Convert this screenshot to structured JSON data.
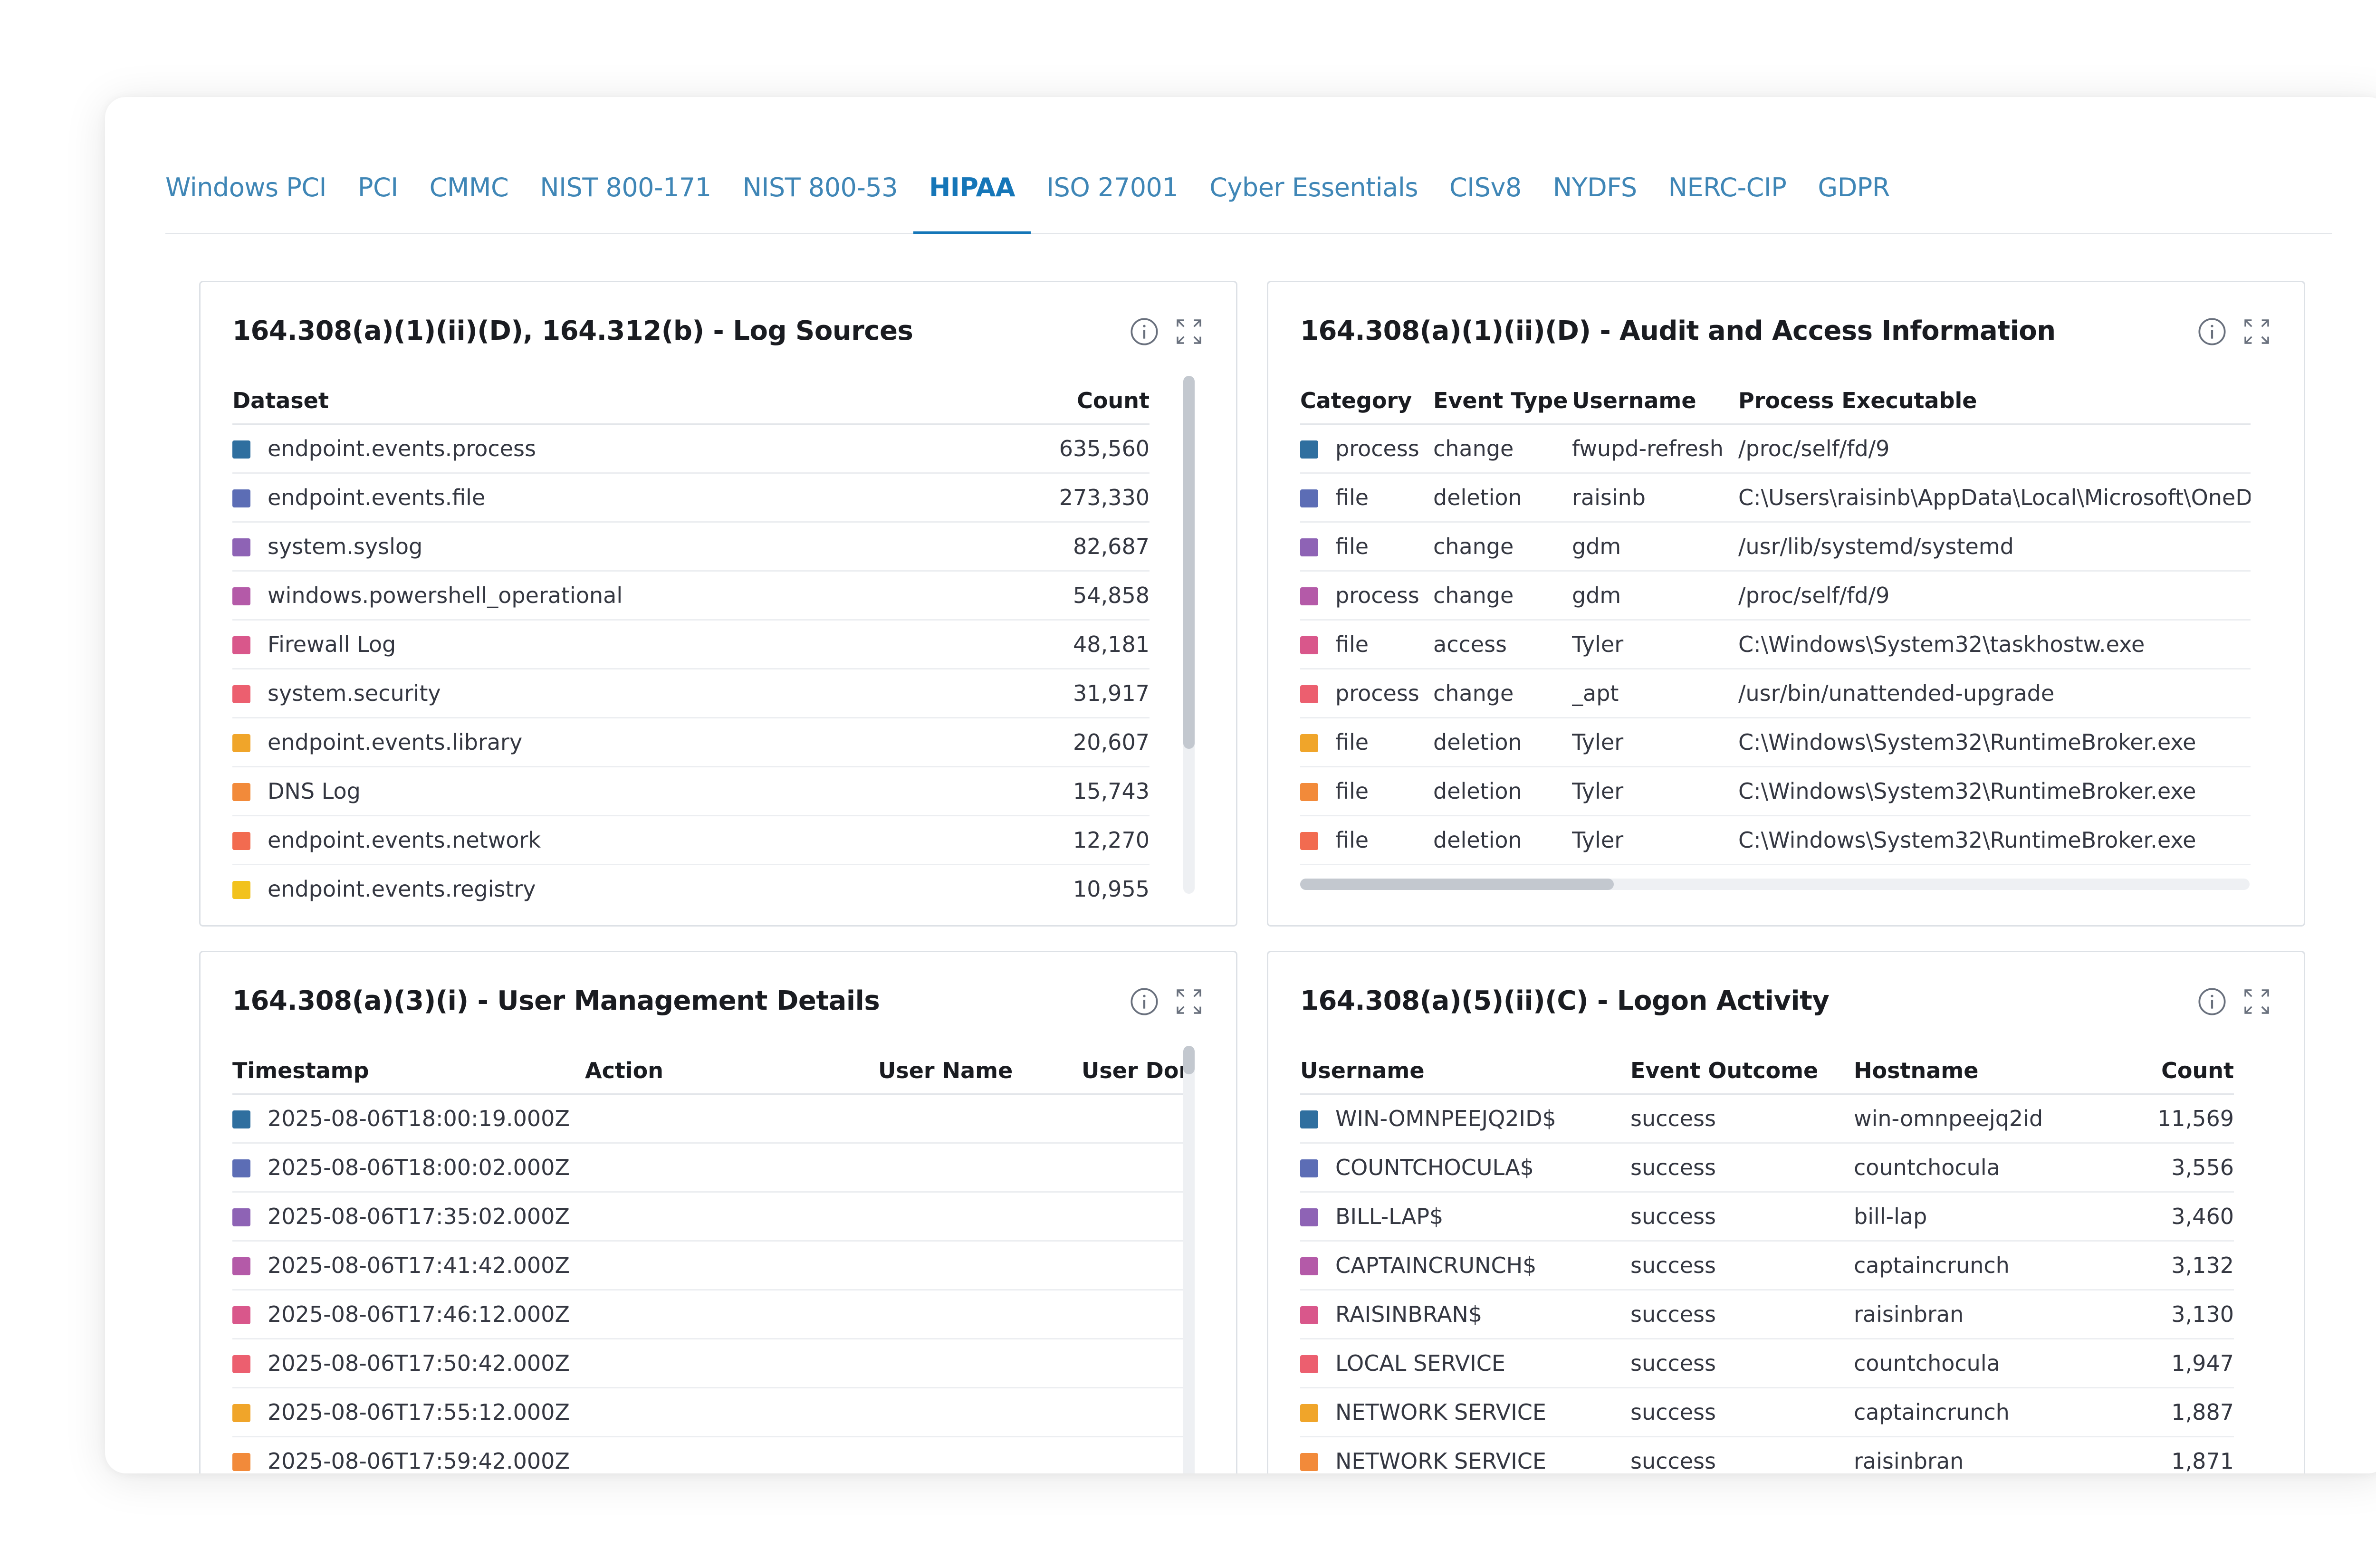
{
  "tabs": [
    {
      "label": "Windows PCI",
      "active": false
    },
    {
      "label": "PCI",
      "active": false
    },
    {
      "label": "CMMC",
      "active": false
    },
    {
      "label": "NIST 800-171",
      "active": false
    },
    {
      "label": "NIST 800-53",
      "active": false
    },
    {
      "label": "HIPAA",
      "active": true
    },
    {
      "label": "ISO 27001",
      "active": false
    },
    {
      "label": "Cyber Essentials",
      "active": false
    },
    {
      "label": "CISv8",
      "active": false
    },
    {
      "label": "NYDFS",
      "active": false
    },
    {
      "label": "NERC-CIP",
      "active": false
    },
    {
      "label": "GDPR",
      "active": false
    }
  ],
  "swatch_colors": [
    "#2f6f9f",
    "#5c6db5",
    "#8e63b5",
    "#b45aa8",
    "#d9578b",
    "#ec5f6f",
    "#f0a52a",
    "#f28a3a",
    "#f26b50",
    "#f2c21d"
  ],
  "panels": {
    "log_sources": {
      "title": "164.308(a)(1)(ii)(D), 164.312(b) - Log Sources",
      "headers": [
        "Dataset",
        "Count"
      ],
      "rows": [
        [
          "endpoint.events.process",
          "635,560"
        ],
        [
          "endpoint.events.file",
          "273,330"
        ],
        [
          "system.syslog",
          "82,687"
        ],
        [
          "windows.powershell_operational",
          "54,858"
        ],
        [
          "Firewall Log",
          "48,181"
        ],
        [
          "system.security",
          "31,917"
        ],
        [
          "endpoint.events.library",
          "20,607"
        ],
        [
          "DNS Log",
          "15,743"
        ],
        [
          "endpoint.events.network",
          "12,270"
        ],
        [
          "endpoint.events.registry",
          "10,955"
        ]
      ]
    },
    "audit_access": {
      "title": "164.308(a)(1)(ii)(D) - Audit and Access Information",
      "headers": [
        "Category",
        "Event Type",
        "Username",
        "Process Executable"
      ],
      "rows": [
        [
          "process",
          "change",
          "fwupd-refresh",
          "/proc/self/fd/9"
        ],
        [
          "file",
          "deletion",
          "raisinb",
          "C:\\Users\\raisinb\\AppData\\Local\\Microsoft\\OneDri"
        ],
        [
          "file",
          "change",
          "gdm",
          "/usr/lib/systemd/systemd"
        ],
        [
          "process",
          "change",
          "gdm",
          "/proc/self/fd/9"
        ],
        [
          "file",
          "access",
          "Tyler",
          "C:\\Windows\\System32\\taskhostw.exe"
        ],
        [
          "process",
          "change",
          "_apt",
          "/usr/bin/unattended-upgrade"
        ],
        [
          "file",
          "deletion",
          "Tyler",
          "C:\\Windows\\System32\\RuntimeBroker.exe"
        ],
        [
          "file",
          "deletion",
          "Tyler",
          "C:\\Windows\\System32\\RuntimeBroker.exe"
        ],
        [
          "file",
          "deletion",
          "Tyler",
          "C:\\Windows\\System32\\RuntimeBroker.exe"
        ]
      ]
    },
    "user_management": {
      "title": "164.308(a)(3)(i) - User Management Details",
      "headers": [
        "Timestamp",
        "Action",
        "User Name",
        "User Dom"
      ],
      "rows": [
        [
          "2025-08-06T18:00:19.000Z"
        ],
        [
          "2025-08-06T18:00:02.000Z"
        ],
        [
          "2025-08-06T17:35:02.000Z"
        ],
        [
          "2025-08-06T17:41:42.000Z"
        ],
        [
          "2025-08-06T17:46:12.000Z"
        ],
        [
          "2025-08-06T17:50:42.000Z"
        ],
        [
          "2025-08-06T17:55:12.000Z"
        ],
        [
          "2025-08-06T17:59:42.000Z"
        ]
      ]
    },
    "logon_activity": {
      "title": "164.308(a)(5)(ii)(C) - Logon Activity",
      "headers": [
        "Username",
        "Event Outcome",
        "Hostname",
        "Count"
      ],
      "rows": [
        [
          "WIN-OMNPEEJQ2ID$",
          "success",
          "win-omnpeejq2id",
          "11,569"
        ],
        [
          "COUNTCHOCULA$",
          "success",
          "countchocula",
          "3,556"
        ],
        [
          "BILL-LAP$",
          "success",
          "bill-lap",
          "3,460"
        ],
        [
          "CAPTAINCRUNCH$",
          "success",
          "captaincrunch",
          "3,132"
        ],
        [
          "RAISINBRAN$",
          "success",
          "raisinbran",
          "3,130"
        ],
        [
          "LOCAL SERVICE",
          "success",
          "countchocula",
          "1,947"
        ],
        [
          "NETWORK SERVICE",
          "success",
          "captaincrunch",
          "1,887"
        ],
        [
          "NETWORK SERVICE",
          "success",
          "raisinbran",
          "1,871"
        ]
      ]
    }
  }
}
